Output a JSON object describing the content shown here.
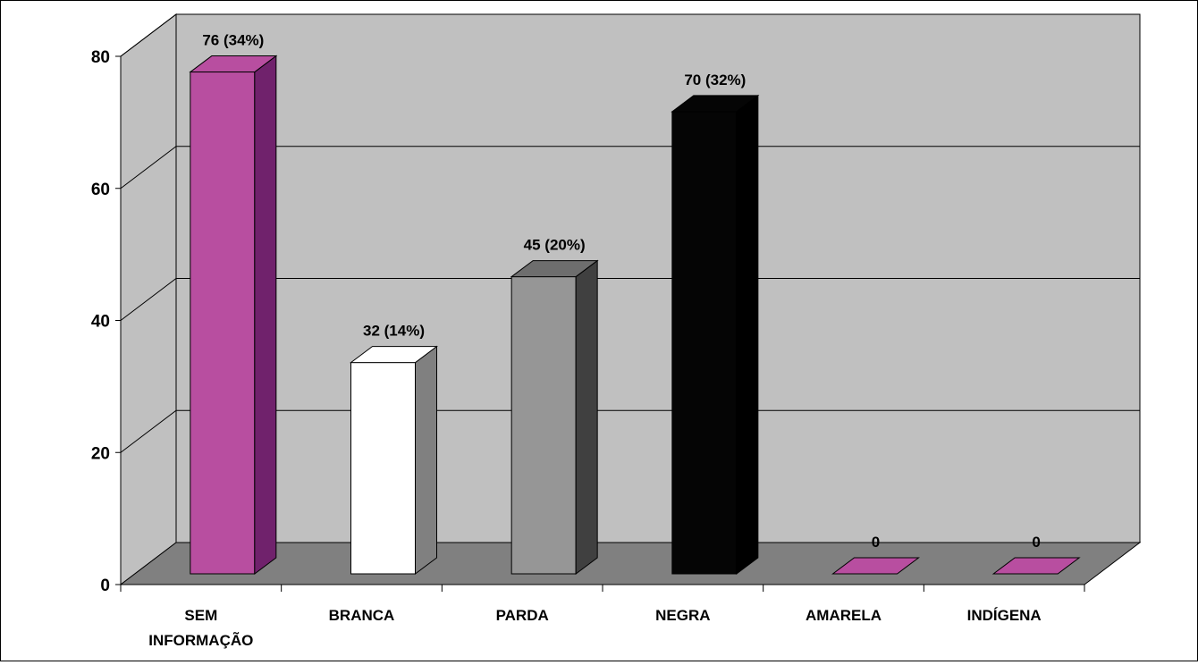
{
  "chart_data": {
    "type": "bar",
    "three_d": true,
    "categories": [
      "SEM\nINFORMAÇÃO",
      "BRANCA",
      "PARDA",
      "NEGRA",
      "AMARELA",
      "INDÍGENA"
    ],
    "values": [
      76,
      32,
      45,
      70,
      0,
      0
    ],
    "data_labels": [
      "76 (34%)",
      "32 (14%)",
      "45 (20%)",
      "70 (32%)",
      "0",
      "0"
    ],
    "bar_colors": [
      "#b84ea0",
      "#ffffff",
      "#969696",
      "#050505",
      "#b84ea0",
      "#b84ea0"
    ],
    "bar_side_colors": [
      "#70226c",
      "#808080",
      "#404040",
      "#000000",
      "#70226c",
      "#70226c"
    ],
    "bar_top_colors": [
      "#b84ea0",
      "#ffffff",
      "#6e6e6e",
      "#050505",
      "#b84ea0",
      "#b84ea0"
    ],
    "ylim": [
      0,
      80
    ],
    "yticks": [
      0,
      20,
      40,
      60,
      80
    ],
    "xlabel": "",
    "ylabel": "",
    "title": "",
    "legend": "none",
    "grid": true,
    "colors": {
      "wall": "#c0c0c0",
      "floor": "#808080",
      "grid": "#000000"
    }
  }
}
